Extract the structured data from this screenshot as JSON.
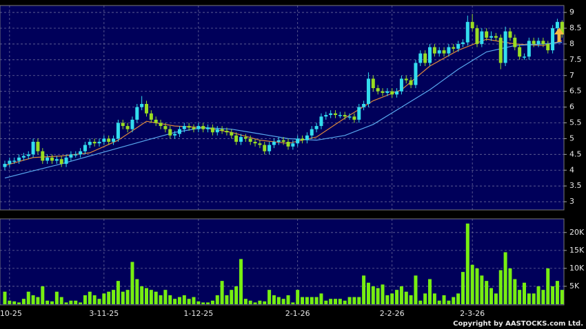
{
  "chart_data": {
    "type": "candlestick",
    "categories": [
      null,
      "-10-25",
      null,
      null,
      null,
      null,
      null,
      null,
      null,
      null,
      null,
      null,
      null,
      null,
      null,
      null,
      null,
      null,
      null,
      null,
      null,
      "3-11-25",
      null,
      null,
      null,
      null,
      null,
      null,
      null,
      null,
      null,
      null,
      null,
      null,
      null,
      null,
      null,
      null,
      null,
      null,
      null,
      "1-12-25",
      null,
      null,
      null,
      null,
      null,
      null,
      null,
      null,
      null,
      null,
      null,
      null,
      null,
      null,
      null,
      null,
      null,
      null,
      null,
      null,
      "2-1-26",
      null,
      null,
      null,
      null,
      null,
      null,
      null,
      null,
      null,
      null,
      null,
      null,
      null,
      null,
      null,
      null,
      null,
      null,
      null,
      "2-2-26",
      null,
      null,
      null,
      null,
      null,
      null,
      null,
      null,
      null,
      null,
      null,
      null,
      null,
      null,
      null,
      null,
      "2-3-26",
      null,
      null,
      null,
      null,
      null,
      null,
      null,
      null,
      null,
      null,
      null,
      null,
      null,
      null,
      null,
      null,
      null,
      null,
      null
    ],
    "open": [
      4.1,
      4.2,
      4.3,
      4.3,
      4.4,
      4.45,
      4.5,
      4.9,
      4.6,
      4.3,
      4.4,
      4.3,
      4.35,
      4.2,
      4.4,
      4.5,
      4.5,
      4.6,
      4.8,
      4.9,
      4.85,
      4.9,
      5.0,
      4.9,
      5.0,
      5.5,
      5.4,
      5.3,
      5.6,
      6.0,
      6.1,
      5.8,
      5.6,
      5.5,
      5.4,
      5.3,
      5.1,
      5.15,
      5.3,
      5.4,
      5.35,
      5.3,
      5.4,
      5.3,
      5.35,
      5.2,
      5.3,
      5.25,
      5.2,
      5.1,
      4.9,
      5.05,
      5.0,
      4.9,
      4.85,
      4.8,
      4.6,
      4.8,
      4.9,
      4.95,
      4.9,
      4.75,
      4.85,
      5.0,
      4.95,
      5.1,
      5.3,
      5.4,
      5.7,
      5.75,
      5.8,
      5.75,
      5.75,
      5.7,
      5.7,
      5.6,
      6.0,
      6.1,
      6.9,
      6.6,
      6.5,
      6.45,
      6.5,
      6.4,
      6.5,
      6.9,
      6.85,
      6.7,
      7.4,
      7.7,
      7.4,
      7.9,
      7.7,
      7.8,
      7.7,
      7.9,
      7.85,
      8.0,
      8.05,
      8.7,
      8.5,
      8.0,
      8.4,
      8.2,
      8.25,
      8.2,
      7.4,
      8.4,
      8.2,
      7.9,
      7.6,
      7.6,
      8.1,
      8.0,
      8.1,
      8.0,
      7.8,
      8.5,
      8.7
    ],
    "high": [
      4.3,
      4.4,
      4.4,
      4.5,
      4.55,
      4.6,
      5.0,
      5.0,
      4.7,
      4.5,
      4.5,
      4.45,
      4.45,
      4.5,
      4.6,
      4.6,
      4.7,
      4.9,
      5.0,
      5.0,
      5.0,
      5.1,
      5.1,
      5.1,
      5.6,
      5.6,
      5.5,
      5.7,
      6.1,
      6.35,
      6.2,
      5.9,
      5.7,
      5.6,
      5.5,
      5.4,
      5.25,
      5.4,
      5.5,
      5.5,
      5.45,
      5.5,
      5.5,
      5.45,
      5.45,
      5.4,
      5.4,
      5.35,
      5.3,
      5.2,
      5.15,
      5.15,
      5.1,
      5.0,
      4.95,
      4.9,
      4.9,
      5.0,
      5.05,
      5.05,
      5.0,
      4.95,
      5.1,
      5.1,
      5.2,
      5.4,
      5.5,
      5.8,
      5.85,
      5.9,
      5.9,
      5.85,
      5.85,
      5.8,
      5.8,
      6.1,
      6.2,
      7.1,
      7.0,
      6.7,
      6.6,
      6.6,
      6.6,
      6.6,
      7.0,
      7.0,
      6.95,
      7.5,
      7.8,
      7.8,
      8.0,
      8.0,
      7.9,
      7.9,
      8.0,
      8.0,
      8.1,
      8.15,
      8.9,
      8.95,
      8.6,
      8.5,
      8.5,
      8.4,
      8.35,
      8.3,
      8.55,
      8.5,
      8.3,
      8.0,
      7.7,
      8.2,
      8.2,
      8.2,
      8.2,
      8.1,
      8.6,
      8.8,
      8.75
    ],
    "low": [
      4.0,
      4.1,
      4.2,
      4.2,
      4.3,
      4.35,
      4.4,
      4.5,
      4.2,
      4.2,
      4.2,
      4.2,
      4.1,
      4.1,
      4.3,
      4.4,
      4.4,
      4.5,
      4.7,
      4.75,
      4.75,
      4.8,
      4.8,
      4.8,
      4.9,
      5.3,
      5.2,
      5.2,
      5.5,
      5.9,
      5.7,
      5.5,
      5.4,
      5.3,
      5.2,
      5.0,
      5.0,
      5.05,
      5.2,
      5.25,
      5.2,
      5.2,
      5.2,
      5.2,
      5.1,
      5.1,
      5.15,
      5.1,
      5.0,
      4.8,
      4.8,
      4.9,
      4.8,
      4.75,
      4.7,
      4.5,
      4.5,
      4.7,
      4.8,
      4.8,
      4.65,
      4.65,
      4.75,
      4.85,
      4.85,
      5.0,
      5.2,
      5.3,
      5.6,
      5.65,
      5.65,
      5.65,
      5.6,
      5.6,
      5.5,
      5.5,
      5.9,
      6.0,
      6.5,
      6.4,
      6.35,
      6.35,
      6.3,
      6.3,
      6.4,
      6.75,
      6.6,
      6.6,
      7.3,
      7.3,
      7.3,
      7.6,
      7.6,
      7.6,
      7.6,
      7.75,
      7.75,
      7.9,
      7.95,
      8.4,
      7.9,
      7.9,
      8.1,
      8.1,
      8.1,
      7.2,
      7.3,
      8.1,
      7.8,
      7.5,
      7.5,
      7.5,
      7.9,
      7.9,
      7.9,
      7.7,
      7.7,
      8.4,
      8.2
    ],
    "close": [
      4.2,
      4.3,
      4.3,
      4.4,
      4.45,
      4.5,
      4.9,
      4.6,
      4.3,
      4.4,
      4.3,
      4.35,
      4.2,
      4.4,
      4.5,
      4.5,
      4.6,
      4.8,
      4.9,
      4.85,
      4.9,
      5.0,
      4.9,
      5.0,
      5.5,
      5.4,
      5.3,
      5.6,
      6.0,
      6.1,
      5.8,
      5.6,
      5.5,
      5.4,
      5.3,
      5.1,
      5.15,
      5.3,
      5.4,
      5.35,
      5.3,
      5.4,
      5.3,
      5.35,
      5.2,
      5.3,
      5.25,
      5.2,
      5.1,
      4.9,
      5.05,
      5.0,
      4.9,
      4.85,
      4.8,
      4.6,
      4.8,
      4.9,
      4.95,
      4.9,
      4.75,
      4.85,
      5.0,
      4.95,
      5.1,
      5.3,
      5.4,
      5.7,
      5.75,
      5.8,
      5.75,
      5.75,
      5.7,
      5.7,
      5.6,
      6.0,
      6.1,
      6.9,
      6.6,
      6.5,
      6.45,
      6.5,
      6.4,
      6.5,
      6.9,
      6.85,
      6.7,
      7.4,
      7.7,
      7.4,
      7.9,
      7.7,
      7.8,
      7.7,
      7.9,
      7.85,
      8.0,
      8.05,
      8.7,
      8.5,
      8.0,
      8.4,
      8.2,
      8.25,
      8.2,
      7.4,
      8.4,
      8.2,
      7.9,
      7.6,
      7.6,
      8.1,
      8.0,
      8.1,
      8.0,
      7.8,
      8.5,
      8.7,
      8.3
    ],
    "up_color": "#33ddee",
    "down_color": "#99dd22",
    "ylim": [
      2.74,
      9.22
    ],
    "yticks": [
      3,
      3.5,
      4,
      4.5,
      5,
      5.5,
      6,
      6.5,
      7,
      7.5,
      8,
      8.5,
      9
    ],
    "grid": true,
    "moving_averages": [
      {
        "color": "#e08a3c",
        "x": [
          0,
          6,
          12,
          18,
          24,
          30,
          36,
          42,
          48,
          54,
          60,
          66,
          72,
          78,
          84,
          90,
          96,
          102,
          108,
          114,
          118
        ],
        "values": [
          4.15,
          4.4,
          4.45,
          4.55,
          4.95,
          5.55,
          5.4,
          5.35,
          5.2,
          4.95,
          4.85,
          5.05,
          5.65,
          6.2,
          6.55,
          7.3,
          7.8,
          8.15,
          8.0,
          7.95,
          8.1
        ]
      },
      {
        "color": "#5aaaf0",
        "x": [
          0,
          6,
          12,
          18,
          24,
          30,
          36,
          42,
          48,
          54,
          60,
          66,
          72,
          78,
          84,
          90,
          96,
          102,
          108,
          114,
          118
        ],
        "values": [
          3.75,
          3.98,
          4.2,
          4.45,
          4.7,
          4.95,
          5.2,
          5.35,
          5.3,
          5.15,
          5.0,
          4.95,
          5.1,
          5.45,
          6.0,
          6.55,
          7.2,
          7.75,
          7.95,
          8.0,
          8.05
        ]
      }
    ],
    "volume": {
      "color": "#77ee11",
      "values": [
        3500,
        1000,
        800,
        500,
        1500,
        3500,
        2500,
        2000,
        5000,
        1000,
        800,
        3500,
        2000,
        500,
        1000,
        1000,
        500,
        2500,
        3500,
        2500,
        1500,
        3000,
        3500,
        4000,
        6500,
        3500,
        4000,
        11800,
        7000,
        5000,
        4500,
        4000,
        3500,
        2500,
        4000,
        2500,
        1500,
        2000,
        2500,
        1500,
        2000,
        800,
        500,
        500,
        1000,
        2500,
        6500,
        2500,
        4000,
        5000,
        12600,
        1500,
        1000,
        500,
        1000,
        800,
        4000,
        2500,
        2000,
        1500,
        2500,
        500,
        4000,
        2000,
        2000,
        2000,
        2000,
        3000,
        1000,
        1500,
        1500,
        1500,
        1000,
        2000,
        2000,
        2000,
        8000,
        6000,
        5000,
        4500,
        5500,
        2500,
        3000,
        4000,
        5000,
        3500,
        2500,
        8000,
        1000,
        3000,
        7000,
        3000,
        1000,
        2500,
        1000,
        2000,
        3000,
        9000,
        22500,
        11000,
        10000,
        8000,
        6500,
        4500,
        3000,
        9500,
        14500,
        10000,
        7000,
        4000,
        6000,
        3000,
        3000,
        5000,
        4000,
        10000,
        5000,
        6500,
        4000
      ],
      "ylim": [
        0,
        23800
      ],
      "yticks": [
        {
          "value": 5000,
          "label": "5K"
        },
        {
          "value": 10000,
          "label": "10K"
        },
        {
          "value": 15000,
          "label": "15K"
        },
        {
          "value": 20000,
          "label": "20K"
        }
      ]
    },
    "copyright": "Copyright by AASTOCKS.com Ltd."
  }
}
